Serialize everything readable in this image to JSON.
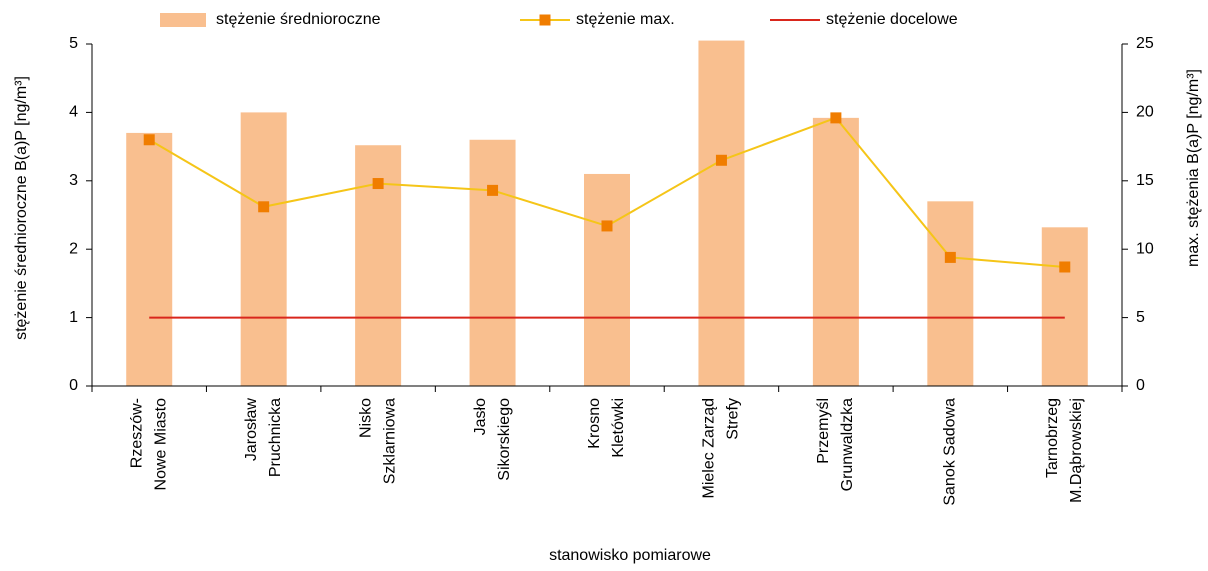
{
  "chart_data": {
    "type": "bar",
    "xlabel": "stanowisko pomiarowe",
    "ylabel": "stężenie średnioroczne B(a)P [ng/m³]",
    "y2label": "max. stężenia  B(a)P [ng/m³]",
    "categories": [
      [
        "Rzeszów-",
        "Nowe Miasto"
      ],
      [
        "Jarosław",
        "Pruchnicka"
      ],
      [
        "Nisko",
        "Szklarniowa"
      ],
      [
        "Jasło",
        "Sikorskiego"
      ],
      [
        "Krosno",
        "Kletówki"
      ],
      [
        "Mielec Zarząd",
        "Strefy"
      ],
      [
        "Przemyśl",
        "Grunwaldzka"
      ],
      [
        "Sanok Sadowa"
      ],
      [
        "Tarnobrzeg",
        "M.Dąbrowskiej"
      ]
    ],
    "series": [
      {
        "name": "stężenie średnioroczne",
        "type": "bar",
        "color": "#f9bf8f",
        "axis": "y",
        "values": [
          3.7,
          4.0,
          3.52,
          3.6,
          3.1,
          5.05,
          3.92,
          2.7,
          2.32
        ]
      },
      {
        "name": "stężenie max.",
        "type": "line",
        "color": "#f5c518",
        "marker_color": "#f07d00",
        "axis": "y2",
        "values": [
          18.0,
          13.1,
          14.8,
          14.3,
          11.7,
          16.5,
          19.6,
          9.4,
          8.7
        ]
      },
      {
        "name": "stężenie docelowe",
        "type": "line",
        "color": "#d9261c",
        "axis": "y",
        "values": [
          1,
          1,
          1,
          1,
          1,
          1,
          1,
          1,
          1
        ]
      }
    ],
    "ylim": [
      0,
      5
    ],
    "yticks": [
      0,
      1,
      2,
      3,
      4,
      5
    ],
    "y2lim": [
      0,
      25
    ],
    "y2ticks": [
      0,
      5,
      10,
      15,
      20,
      25
    ],
    "grid": false,
    "legend": "top"
  }
}
